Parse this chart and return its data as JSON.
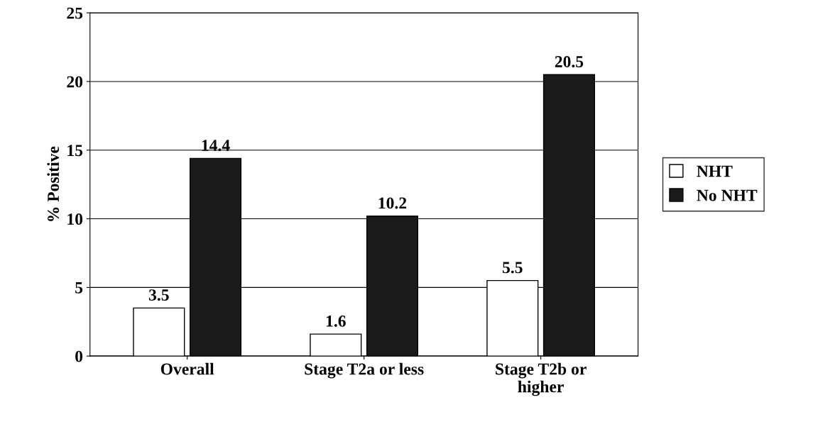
{
  "chart_data": {
    "type": "bar",
    "ylabel": "% Positive",
    "categories": [
      "Overall",
      "Stage T2a or less",
      "Stage T2b or\nhigher"
    ],
    "series": [
      {
        "name": "NHT",
        "color": "#ffffff",
        "values": [
          3.5,
          1.6,
          5.5
        ]
      },
      {
        "name": "No NHT",
        "color": "#1a1a1a",
        "values": [
          14.4,
          10.2,
          20.5
        ]
      }
    ],
    "ylim": [
      0,
      25
    ],
    "yticks": [
      0,
      5,
      10,
      15,
      20,
      25
    ],
    "grid": "y",
    "legend": "right",
    "data_labels": true
  }
}
